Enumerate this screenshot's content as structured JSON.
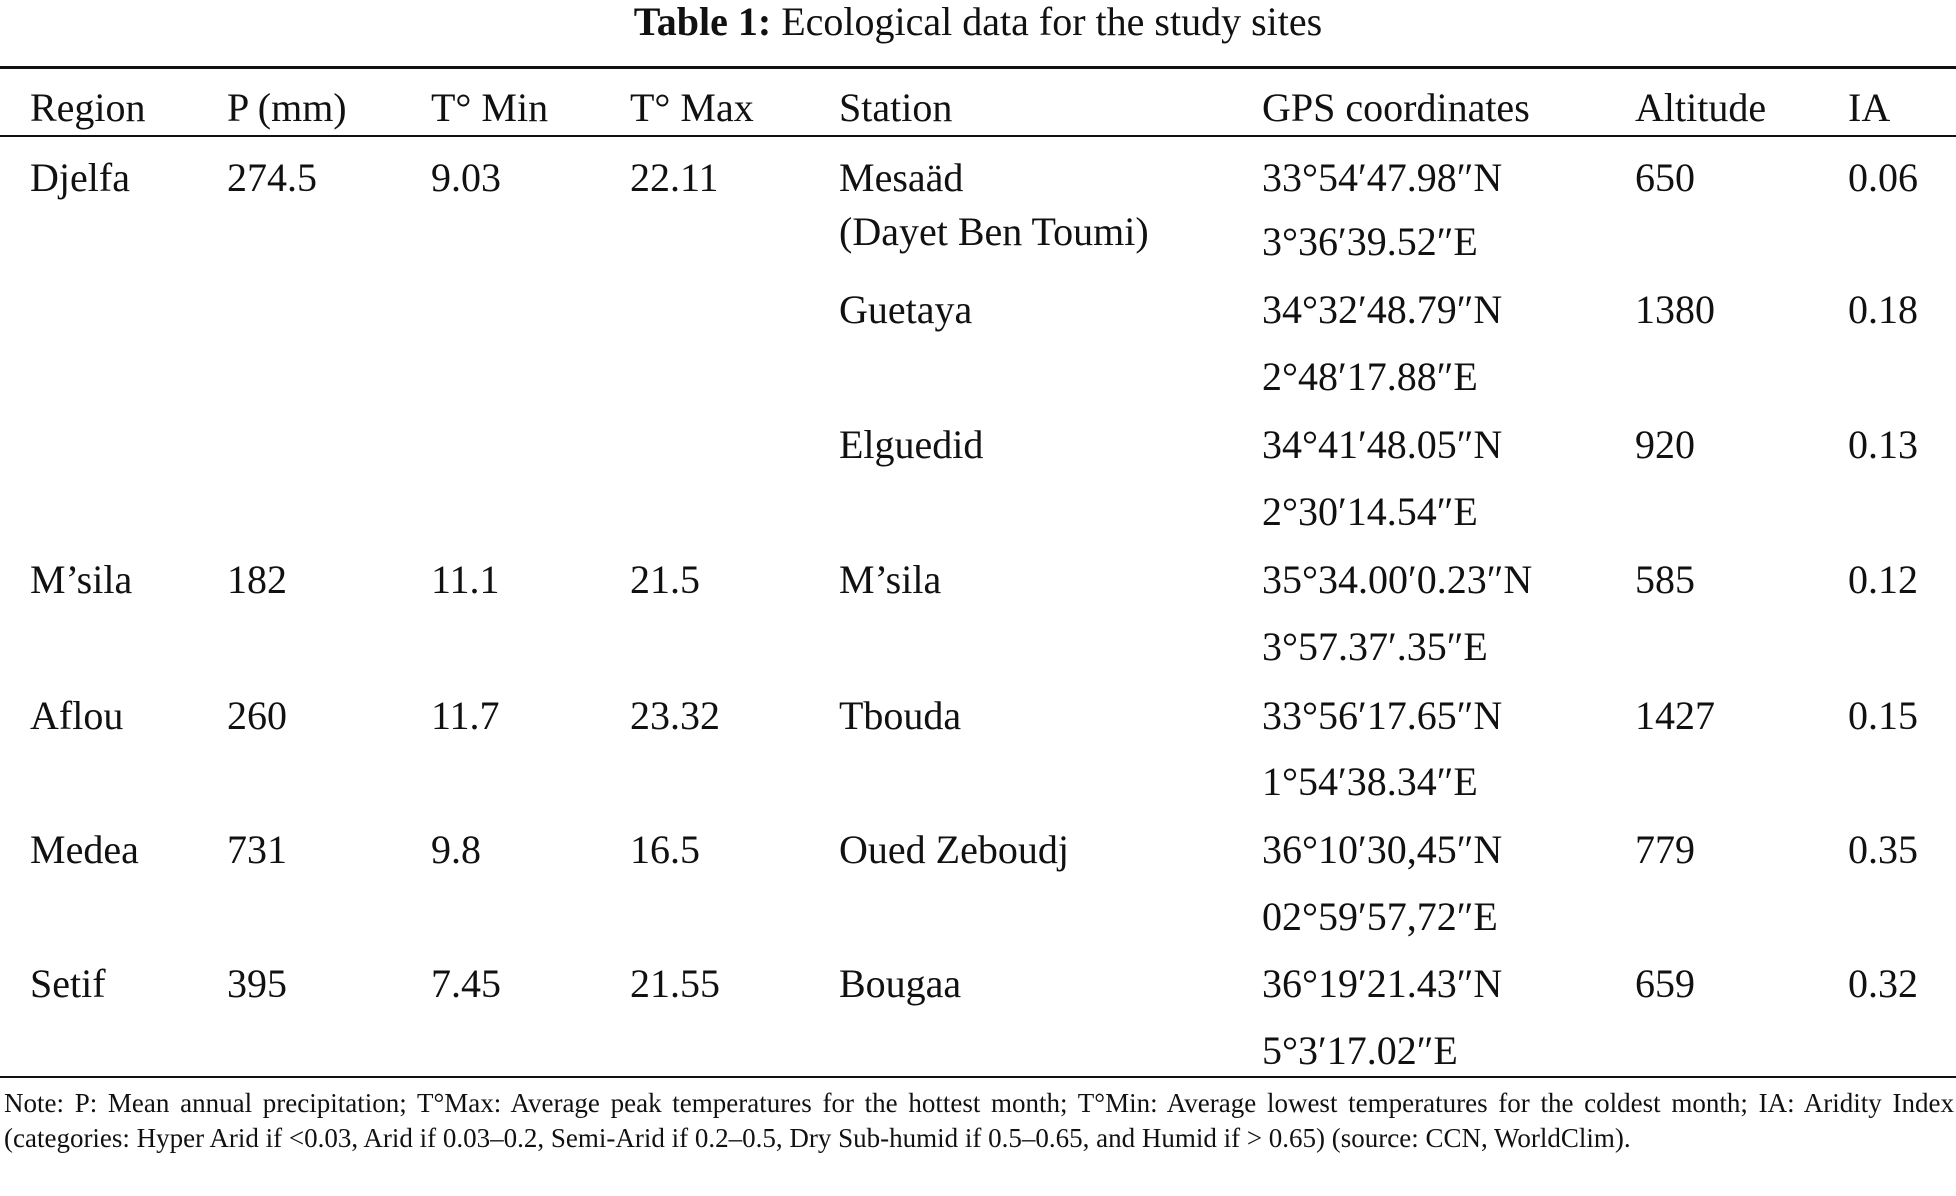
{
  "caption": {
    "label": "Table 1:",
    "text": "Ecological data for the study sites"
  },
  "headers": {
    "region": "Region",
    "p": "P (mm)",
    "tmin": "T° Min",
    "tmax": "T° Max",
    "station": "Station",
    "gps": "GPS coordinates",
    "altitude": "Altitude",
    "ia": "IA"
  },
  "rows": [
    {
      "region": "Djelfa",
      "p": "274.5",
      "tmin": "9.03",
      "tmax": "22.11",
      "station": "Mesaäd",
      "station2": "(Dayet Ben Toumi)",
      "lat": "33°54′47.98″N",
      "lon": "3°36′39.52″E",
      "altitude": "650",
      "ia": "0.06"
    },
    {
      "region": "",
      "p": "",
      "tmin": "",
      "tmax": "",
      "station": "Guetaya",
      "station2": "",
      "lat": "34°32′48.79″N",
      "lon": "2°48′17.88″E",
      "altitude": "1380",
      "ia": "0.18"
    },
    {
      "region": "",
      "p": "",
      "tmin": "",
      "tmax": "",
      "station": "Elguedid",
      "station2": "",
      "lat": "34°41′48.05″N",
      "lon": "2°30′14.54″E",
      "altitude": "920",
      "ia": "0.13"
    },
    {
      "region": "M’sila",
      "p": "182",
      "tmin": "11.1",
      "tmax": "21.5",
      "station": "M’sila",
      "station2": "",
      "lat": "35°34.00′0.23″N",
      "lon": "3°57.37′.35″E",
      "altitude": "585",
      "ia": "0.12"
    },
    {
      "region": "Aflou",
      "p": "260",
      "tmin": "11.7",
      "tmax": "23.32",
      "station": "Tbouda",
      "station2": "",
      "lat": "33°56′17.65″N",
      "lon": "1°54′38.34″E",
      "altitude": "1427",
      "ia": "0.15"
    },
    {
      "region": "Medea",
      "p": "731",
      "tmin": "9.8",
      "tmax": "16.5",
      "station": "Oued Zeboudj",
      "station2": "",
      "lat": "36°10′30,45″N",
      "lon": "02°59′57,72″E",
      "altitude": "779",
      "ia": "0.35"
    },
    {
      "region": "Setif",
      "p": "395",
      "tmin": "7.45",
      "tmax": "21.55",
      "station": "Bougaa",
      "station2": "",
      "lat": "36°19′21.43″N",
      "lon": "5°3′17.02″E",
      "altitude": "659",
      "ia": "0.32"
    }
  ],
  "note": "Note: P: Mean annual precipitation; T°Max: Average peak temperatures for the hottest month; T°Min: Average lowest temperatures for the coldest month; IA: Aridity Index (categories: Hyper Arid if <0.03, Arid if 0.03–0.2, Semi-Arid if 0.2–0.5, Dry Sub-humid if 0.5–0.65, and Humid if > 0.65) (source: CCN, WorldClim)."
}
